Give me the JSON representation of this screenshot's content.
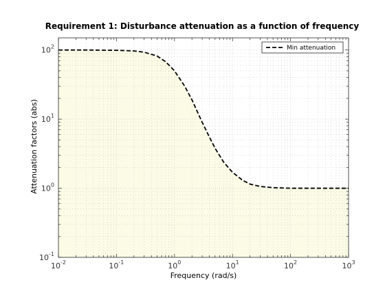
{
  "chart_data": {
    "type": "line",
    "title": "Requirement 1: Disturbance attenuation as a function of frequency",
    "xlabel": "Frequency (rad/s)",
    "ylabel": "Attenuation factors (abs)",
    "xscale": "log",
    "yscale": "log",
    "xlim": [
      0.01,
      1000
    ],
    "ylim": [
      0.1,
      150
    ],
    "x_ticks": [
      {
        "base": "10",
        "exp": "-2",
        "value": 0.01
      },
      {
        "base": "10",
        "exp": "-1",
        "value": 0.1
      },
      {
        "base": "10",
        "exp": "0",
        "value": 1
      },
      {
        "base": "10",
        "exp": "1",
        "value": 10
      },
      {
        "base": "10",
        "exp": "2",
        "value": 100
      },
      {
        "base": "10",
        "exp": "3",
        "value": 1000
      }
    ],
    "y_ticks": [
      {
        "base": "10",
        "exp": "-1",
        "value": 0.1
      },
      {
        "base": "10",
        "exp": "0",
        "value": 1
      },
      {
        "base": "10",
        "exp": "1",
        "value": 10
      },
      {
        "base": "10",
        "exp": "2",
        "value": 100
      }
    ],
    "grid": true,
    "legend_position": "top-right",
    "shaded_region": {
      "description": "area below the curve",
      "color": "#fbfbe6"
    },
    "series": [
      {
        "name": "Min attenuation",
        "style": "dashed",
        "color": "#000000",
        "x": [
          0.01,
          0.03,
          0.1,
          0.2,
          0.3,
          0.5,
          0.7,
          1,
          1.5,
          2,
          3,
          4,
          5,
          7,
          10,
          15,
          20,
          30,
          50,
          70,
          100,
          200,
          500,
          1000
        ],
        "y": [
          100,
          100,
          99,
          97,
          93,
          82,
          68,
          50,
          30,
          19,
          9,
          5.5,
          3.8,
          2.4,
          1.7,
          1.3,
          1.15,
          1.06,
          1.02,
          1.01,
          1.0,
          1.0,
          1.0,
          1.0
        ]
      }
    ]
  }
}
